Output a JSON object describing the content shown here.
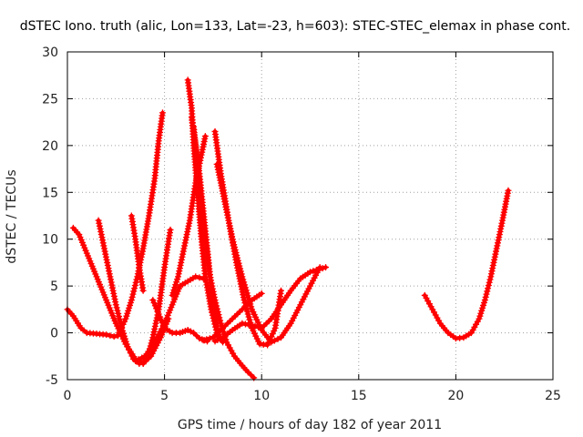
{
  "chart_data": {
    "type": "scatter",
    "title": "dSTEC Iono. truth (alic, Lon=133, Lat=-23, h=603): STEC-STEC_elemax in phase cont.",
    "xlabel": "GPS time / hours of day 182 of year 2011",
    "ylabel": "dSTEC  / TECUs",
    "xlim": [
      0,
      25
    ],
    "ylim": [
      -5,
      30
    ],
    "xticks": [
      0,
      5,
      10,
      15,
      20,
      25
    ],
    "yticks": [
      -5,
      0,
      5,
      10,
      15,
      20,
      25,
      30
    ],
    "grid": true,
    "marker": "plus",
    "color": "#ff0000",
    "series": [
      {
        "x": [
          0.0,
          0.3,
          0.7,
          1.0,
          1.5,
          2.0,
          2.4,
          2.6
        ],
        "y": [
          2.5,
          1.8,
          0.5,
          0.0,
          -0.1,
          -0.2,
          -0.4,
          -0.3
        ]
      },
      {
        "x": [
          0.3,
          0.6,
          1.0,
          1.5,
          2.0,
          2.5,
          3.0,
          3.5,
          3.9,
          4.3,
          4.8,
          5.2
        ],
        "y": [
          11.2,
          10.5,
          8.5,
          6.0,
          3.5,
          1.0,
          -1.2,
          -2.8,
          -3.3,
          -2.5,
          -0.5,
          1.5
        ]
      },
      {
        "x": [
          1.6,
          1.9,
          2.2,
          2.5,
          2.8,
          3.1,
          3.4,
          3.7
        ],
        "y": [
          12.0,
          9.0,
          6.0,
          3.0,
          0.5,
          -1.5,
          -2.8,
          -3.3
        ]
      },
      {
        "x": [
          3.3,
          3.5,
          3.7,
          3.9
        ],
        "y": [
          12.5,
          10.0,
          7.0,
          4.5
        ]
      },
      {
        "x": [
          2.6,
          3.0,
          3.3,
          3.6,
          3.9,
          4.2,
          4.5,
          4.7,
          4.9
        ],
        "y": [
          -0.3,
          1.5,
          3.5,
          6.0,
          9.0,
          12.5,
          16.5,
          20.5,
          23.5
        ]
      },
      {
        "x": [
          3.9,
          4.2,
          4.4,
          4.7,
          5.0,
          5.3
        ],
        "y": [
          -3.3,
          -2.0,
          -0.5,
          2.5,
          7.0,
          11.0
        ]
      },
      {
        "x": [
          4.4,
          4.7,
          5.0,
          5.4,
          5.8,
          6.2,
          6.5,
          6.8,
          7.2
        ],
        "y": [
          3.5,
          2.0,
          0.5,
          0.0,
          0.0,
          0.3,
          0.0,
          -0.6,
          -0.9
        ]
      },
      {
        "x": [
          6.2,
          6.4,
          6.5,
          6.7,
          6.9,
          7.1,
          7.4,
          7.7,
          8.0
        ],
        "y": [
          27.0,
          24.0,
          20.0,
          15.0,
          10.0,
          6.0,
          2.5,
          0.0,
          -1.0
        ]
      },
      {
        "x": [
          6.4,
          6.6,
          6.8,
          7.0,
          7.2,
          7.4,
          7.6,
          7.8
        ],
        "y": [
          23.0,
          20.0,
          17.0,
          13.0,
          9.0,
          5.0,
          2.0,
          -0.5
        ]
      },
      {
        "x": [
          6.5,
          6.7,
          6.9,
          7.1,
          7.3,
          7.6,
          7.9,
          8.2,
          8.6,
          9.0,
          9.3,
          9.6
        ],
        "y": [
          22.0,
          18.0,
          14.0,
          10.0,
          6.5,
          3.5,
          1.0,
          -1.0,
          -2.5,
          -3.5,
          -4.2,
          -4.8
        ]
      },
      {
        "x": [
          5.4,
          5.7,
          6.0,
          6.3,
          6.6,
          6.9,
          7.1
        ],
        "y": [
          4.0,
          6.0,
          9.0,
          12.0,
          16.0,
          19.0,
          21.0
        ]
      },
      {
        "x": [
          3.5,
          4.0,
          4.5,
          5.0,
          5.4,
          5.8,
          6.2,
          6.6,
          7.0
        ],
        "y": [
          -3.0,
          -2.5,
          -1.0,
          1.0,
          3.0,
          5.0,
          5.5,
          6.0,
          5.8
        ]
      },
      {
        "x": [
          7.6,
          7.9,
          8.3,
          8.7,
          9.1,
          9.5,
          9.9,
          10.3,
          10.7,
          11.0
        ],
        "y": [
          21.5,
          17.0,
          12.0,
          7.5,
          3.5,
          0.5,
          -1.2,
          -1.3,
          0.5,
          4.5
        ]
      },
      {
        "x": [
          7.7,
          8.1,
          8.5,
          9.0,
          9.5,
          10.0,
          10.5,
          11.0,
          11.5,
          12.0,
          12.5,
          13.0
        ],
        "y": [
          18.0,
          14.0,
          10.0,
          6.0,
          2.5,
          0.3,
          -1.0,
          -0.5,
          1.0,
          3.0,
          5.0,
          7.0
        ]
      },
      {
        "x": [
          7.0,
          7.5,
          8.0,
          8.5,
          9.0,
          9.5,
          10.0
        ],
        "y": [
          -0.8,
          -0.5,
          0.5,
          1.5,
          2.5,
          3.5,
          4.2
        ]
      },
      {
        "x": [
          7.6,
          8.0,
          8.5,
          9.0,
          9.5,
          10.0,
          10.5,
          11.0,
          11.5,
          12.0,
          12.5,
          13.3
        ],
        "y": [
          -0.9,
          -0.5,
          0.3,
          1.0,
          0.8,
          0.5,
          1.5,
          3.0,
          4.5,
          5.8,
          6.5,
          7.0
        ]
      },
      {
        "x": [
          18.4,
          18.8,
          19.2,
          19.6,
          20.0,
          20.4,
          20.8,
          21.2,
          21.5,
          21.8,
          22.1,
          22.4,
          22.7
        ],
        "y": [
          4.0,
          2.5,
          1.0,
          0.0,
          -0.6,
          -0.5,
          0.0,
          1.5,
          3.5,
          6.0,
          9.0,
          12.0,
          15.2
        ]
      }
    ]
  }
}
